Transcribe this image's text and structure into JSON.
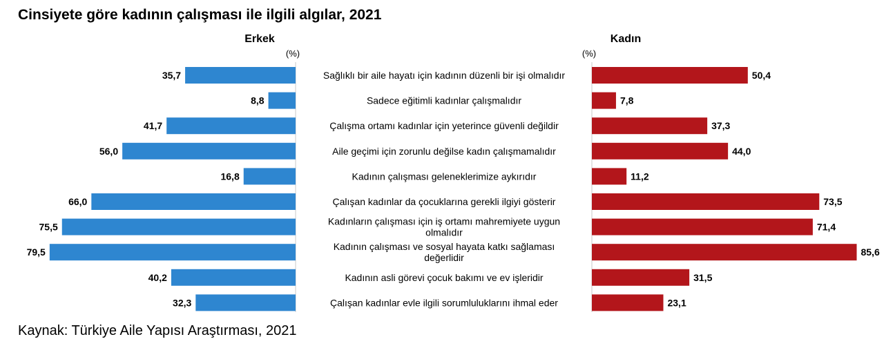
{
  "title": "Cinsiyete göre kadının çalışması ile ilgili algılar, 2021",
  "source": "Kaynak: Türkiye Aile Yapısı Araştırması, 2021",
  "chart_data": {
    "type": "bar",
    "orientation": "horizontal-butterfly",
    "unit": "(%)",
    "categories": [
      [
        "Sağlıklı bir aile hayatı için kadının düzenli bir işi olmalıdır"
      ],
      [
        "Sadece eğitimli kadınlar çalışmalıdır"
      ],
      [
        "Çalışma ortamı kadınlar için yeterince güvenli değildir"
      ],
      [
        "Aile geçimi için zorunlu değilse kadın çalışmamalıdır"
      ],
      [
        "Kadının çalışması geleneklerimize aykırıdır"
      ],
      [
        "Çalışan kadınlar da çocuklarına gerekli ilgiyi gösterir"
      ],
      [
        "Kadınların çalışması için iş ortamı mahremiyete uygun",
        "olmalıdır"
      ],
      [
        "Kadının çalışması ve sosyal hayata katkı sağlaması",
        "değerlidir"
      ],
      [
        "Kadının asli görevi çocuk bakımı ve ev işleridir"
      ],
      [
        "Çalışan kadınlar evle ilgili sorumluluklarını ihmal eder"
      ]
    ],
    "series": [
      {
        "name": "Erkek",
        "color": "#2e86d0",
        "values": [
          35.7,
          8.8,
          41.7,
          56.0,
          16.8,
          66.0,
          75.5,
          79.5,
          40.2,
          32.3
        ],
        "labels": [
          "35,7",
          "8,8",
          "41,7",
          "56,0",
          "16,8",
          "66,0",
          "75,5",
          "79,5",
          "40,2",
          "32,3"
        ]
      },
      {
        "name": "Kadın",
        "color": "#b3161b",
        "values": [
          50.4,
          7.8,
          37.3,
          44.0,
          11.2,
          73.5,
          71.4,
          85.6,
          31.5,
          23.1
        ],
        "labels": [
          "50,4",
          "7,8",
          "37,3",
          "44,0",
          "11,2",
          "73,5",
          "71,4",
          "85,6",
          "31,5",
          "23,1"
        ]
      }
    ]
  }
}
